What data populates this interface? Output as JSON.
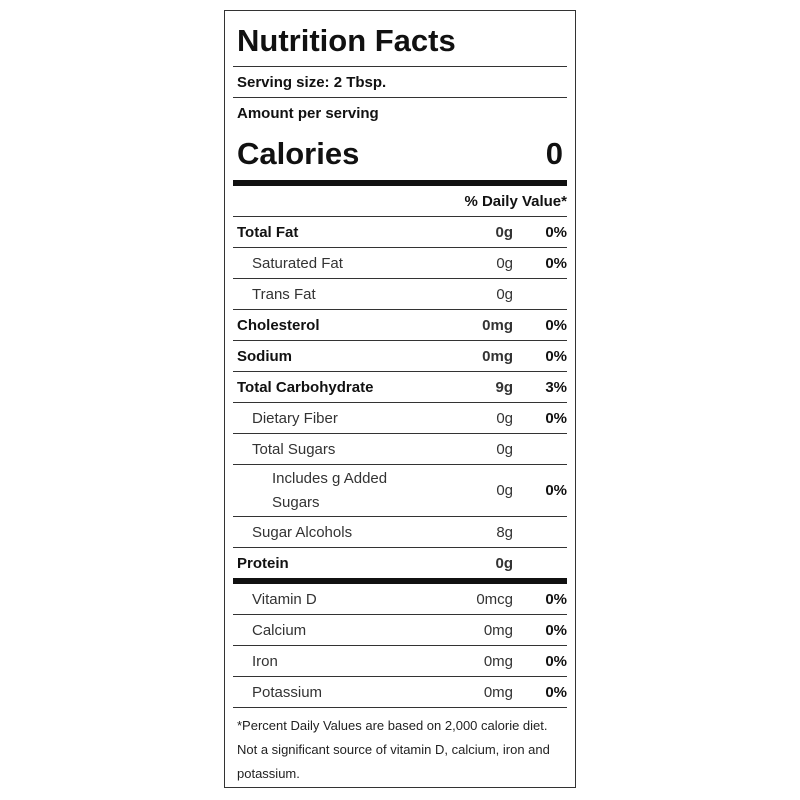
{
  "title": "Nutrition Facts",
  "serving_size": "Serving size: 2 Tbsp.",
  "amount_per_serving": "Amount per serving",
  "calories": {
    "label": "Calories",
    "value": "0"
  },
  "daily_value_header": "% Daily Value*",
  "nutrients": [
    {
      "name": "Total Fat",
      "amount": "0g",
      "daily_value": "0%"
    },
    {
      "name": "Saturated Fat",
      "amount": "0g",
      "daily_value": "0%"
    },
    {
      "name": "Trans Fat",
      "amount": "0g"
    },
    {
      "name": "Cholesterol",
      "amount": "0mg",
      "daily_value": "0%"
    },
    {
      "name": "Sodium",
      "amount": "0mg",
      "daily_value": "0%"
    },
    {
      "name": "Total Carbohydrate",
      "amount": "9g",
      "daily_value": "3%"
    },
    {
      "name": "Dietary Fiber",
      "amount": "0g",
      "daily_value": "0%"
    },
    {
      "name": "Total Sugars",
      "amount": "0g"
    },
    {
      "name": "Includes g Added Sugars",
      "amount": "0g",
      "daily_value": "0%"
    },
    {
      "name": "Sugar Alcohols",
      "amount": "8g"
    },
    {
      "name": "Protein",
      "amount": "0g"
    }
  ],
  "vitamins": [
    {
      "name": "Vitamin D",
      "amount": "0mcg",
      "daily_value": "0%"
    },
    {
      "name": "Calcium",
      "amount": "0mg",
      "daily_value": "0%"
    },
    {
      "name": "Iron",
      "amount": "0mg",
      "daily_value": "0%"
    },
    {
      "name": "Potassium",
      "amount": "0mg",
      "daily_value": "0%"
    }
  ],
  "footnote": "*Percent Daily Values are based on 2,000 calorie diet. Not a significant source of vitamin D, calcium, iron and potassium."
}
